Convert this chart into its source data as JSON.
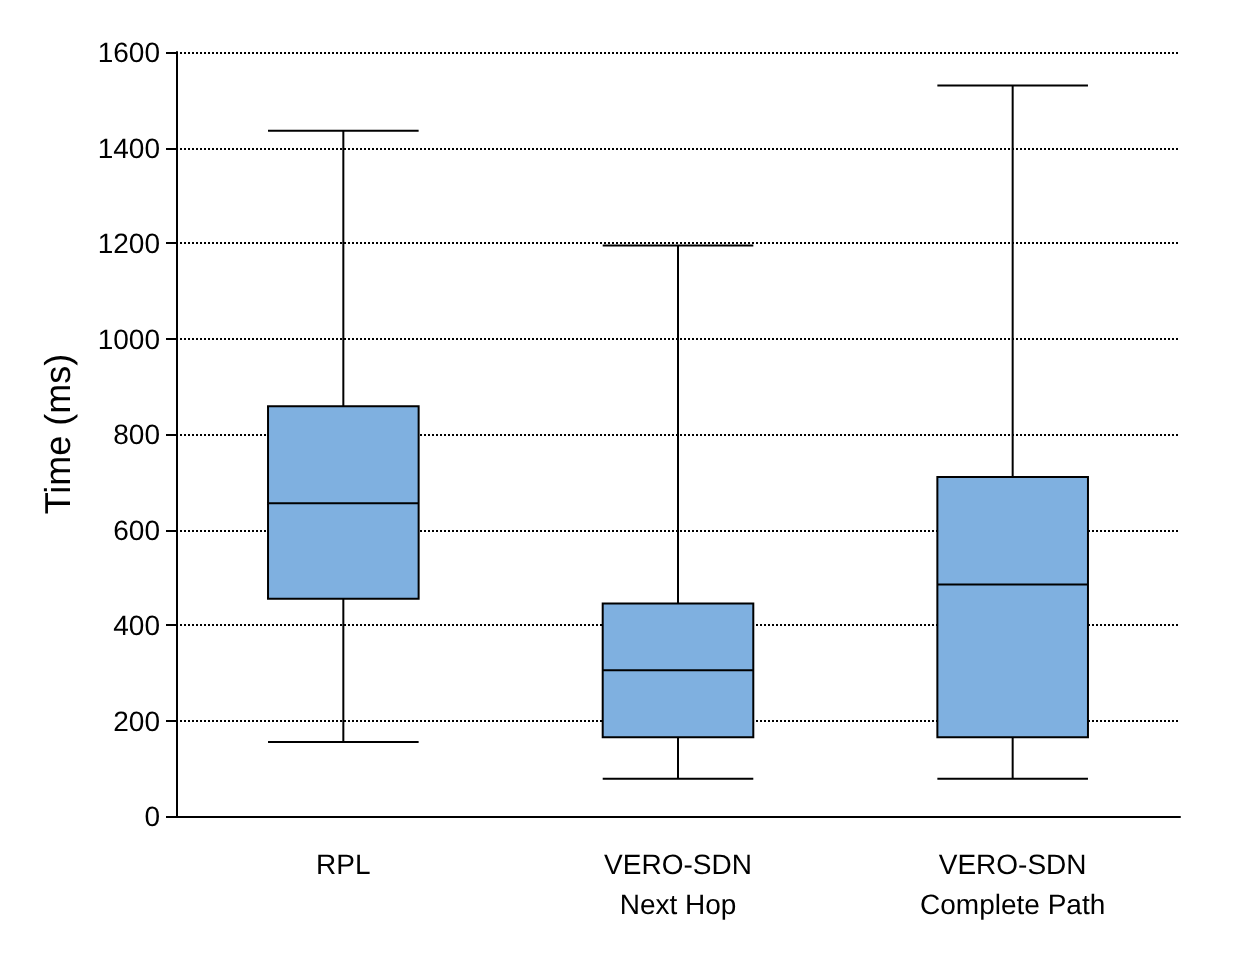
{
  "chart_data": {
    "type": "box",
    "ylabel": "Time (ms)",
    "categories": [
      "RPL",
      "VERO-SDN\nNext Hop",
      "VERO-SDN\nComplete Path"
    ],
    "series": [
      {
        "color": "#7fb0e0",
        "boxes": [
          {
            "low": 155,
            "q1": 455,
            "median": 655,
            "q3": 858,
            "high": 1435
          },
          {
            "low": 78,
            "q1": 165,
            "median": 305,
            "q3": 445,
            "high": 1195
          },
          {
            "low": 78,
            "q1": 165,
            "median": 485,
            "q3": 710,
            "high": 1530
          }
        ]
      }
    ],
    "ylim": [
      0,
      1600
    ],
    "yticks": [
      0,
      200,
      400,
      600,
      800,
      1000,
      1200,
      1400,
      1600
    ],
    "grid": "y"
  }
}
